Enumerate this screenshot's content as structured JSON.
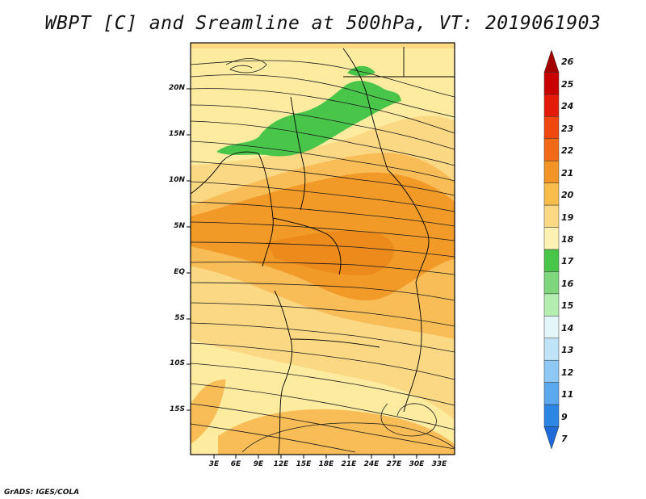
{
  "title": "WBPT [C] and Sreamline at 500hPa, VT: 2019061903",
  "credit": "GrADS: IGES/COLA",
  "map": {
    "lat_ticks": [
      "20N",
      "15N",
      "10N",
      "5N",
      "EQ",
      "5S",
      "10S",
      "15S"
    ],
    "lon_ticks": [
      "3E",
      "6E",
      "9E",
      "12E",
      "15E",
      "18E",
      "21E",
      "24E",
      "27E",
      "30E",
      "33E"
    ],
    "fill_colors": {
      "c18_19": "#fdeca0",
      "c19_20": "#fbd884",
      "c20_21": "#f9bd58",
      "c21_22": "#f29a28",
      "c22_23": "#ec7a14",
      "c17_18": "#49c64a"
    }
  },
  "colorbar": {
    "labels": [
      "26",
      "25",
      "24",
      "23",
      "22",
      "21",
      "20",
      "19",
      "18",
      "17",
      "16",
      "15",
      "14",
      "13",
      "12",
      "11",
      "9",
      "7"
    ],
    "colors": [
      "#a40000",
      "#c80000",
      "#e41a0a",
      "#f0470f",
      "#f26a18",
      "#f29426",
      "#f9bd4c",
      "#fbd884",
      "#fdf2b4",
      "#49c64a",
      "#7ed77c",
      "#b4eeb0",
      "#e4f6f8",
      "#bfe4f8",
      "#8ec8f4",
      "#5aa9ee",
      "#2e86e4",
      "#1e6ad8"
    ]
  }
}
